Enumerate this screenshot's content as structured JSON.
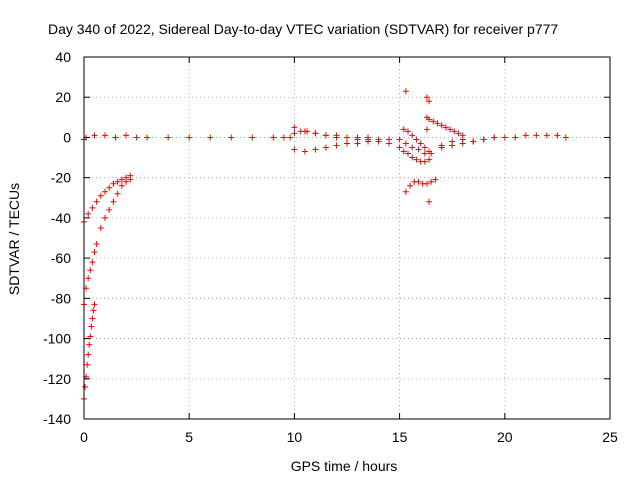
{
  "chart_data": {
    "type": "scatter",
    "title": "Day 340 of 2022, Sidereal Day-to-day VTEC variation (SDTVAR) for receiver p777",
    "xlabel": "GPS time / hours",
    "ylabel": "SDTVAR / TECUs",
    "xlim": [
      0,
      25
    ],
    "ylim": [
      -140,
      40
    ],
    "xticks": [
      0,
      5,
      10,
      15,
      20,
      25
    ],
    "yticks": [
      40,
      20,
      0,
      -20,
      -40,
      -60,
      -80,
      -100,
      -120,
      -140
    ],
    "grid": true,
    "marker": "+",
    "series": [
      {
        "name": "SDTVAR",
        "color": "#ff0000",
        "x": [
          0.0,
          0.1,
          0.5,
          1.0,
          1.5,
          2.0,
          2.5,
          3.0,
          4.0,
          5.0,
          6.0,
          7.0,
          8.0,
          9.0,
          9.5,
          9.8,
          10.0,
          10.3,
          10.6,
          11.0,
          11.5,
          12.0,
          12.5,
          13.0,
          13.5,
          14.0,
          14.5,
          15.0,
          15.3,
          15.6,
          15.9,
          16.2,
          16.5,
          17.0,
          17.5,
          18.0,
          18.5,
          19.0,
          19.5,
          20.0,
          20.5,
          21.0,
          21.5,
          22.0,
          22.5,
          22.9,
          0.0,
          0.2,
          0.4,
          0.6,
          0.8,
          1.0,
          1.2,
          1.4,
          1.6,
          1.8,
          2.0,
          2.2,
          0.0,
          0.1,
          0.2,
          0.3,
          0.4,
          0.5,
          0.6,
          0.8,
          1.0,
          1.2,
          1.4,
          1.6,
          1.8,
          2.0,
          2.2,
          0.0,
          0.05,
          0.1,
          0.15,
          0.2,
          0.25,
          0.3,
          0.35,
          0.4,
          0.45,
          0.5,
          10.0,
          10.5,
          11.0,
          11.5,
          12.0,
          12.5,
          13.0,
          13.5,
          14.0,
          10.0,
          10.5,
          11.0,
          11.5,
          12.0,
          12.5,
          13.0,
          13.5,
          14.0,
          14.5,
          15.0,
          15.2,
          15.4,
          15.6,
          15.8,
          16.0,
          16.2,
          16.4,
          15.3,
          15.5,
          15.7,
          15.9,
          16.1,
          16.3,
          16.5,
          16.7,
          15.2,
          15.4,
          15.6,
          15.8,
          16.0,
          16.2,
          16.4,
          16.3,
          16.4,
          16.6,
          16.8,
          17.0,
          17.2,
          17.4,
          17.6,
          17.8,
          18.0,
          17.0,
          17.5,
          18.0,
          18.5,
          19.0,
          19.5,
          15.3,
          16.4,
          16.3,
          16.3,
          16.4
        ],
        "y": [
          -1,
          0,
          1,
          1,
          0,
          1,
          0,
          0,
          0,
          0,
          0,
          0,
          0,
          0,
          0,
          0,
          2,
          3,
          3,
          2,
          1,
          1,
          0,
          0,
          0,
          -1,
          -1,
          -1,
          -3,
          -5,
          -6,
          -8,
          -8,
          -4,
          -2,
          -1,
          -2,
          -1,
          0,
          0,
          0,
          1,
          1,
          1,
          1,
          0,
          -42,
          -38,
          -35,
          -32,
          -29,
          -27,
          -25,
          -23,
          -22,
          -21,
          -20,
          -19,
          -83,
          -75,
          -70,
          -66,
          -62,
          -57,
          -53,
          -45,
          -40,
          -36,
          -32,
          -28,
          -24,
          -22,
          -21,
          -130,
          -124,
          -119,
          -113,
          -108,
          -103,
          -99,
          -94,
          -90,
          -86,
          -83,
          -6,
          -7,
          -6,
          -5,
          -4,
          -3,
          -3,
          -2,
          -2,
          5,
          3,
          2,
          1,
          0,
          0,
          -1,
          -1,
          -2,
          -3,
          -5,
          -7,
          -8,
          -10,
          -11,
          -12,
          -12,
          -11,
          -27,
          -24,
          -22,
          -22,
          -23,
          -23,
          -22,
          -21,
          4,
          3,
          1,
          -1,
          -3,
          -5,
          -7,
          10,
          9,
          8,
          7,
          6,
          5,
          4,
          3,
          2,
          1,
          -5,
          -4,
          -3,
          -2,
          -1,
          0,
          23,
          18,
          20,
          4,
          -32
        ]
      }
    ]
  }
}
